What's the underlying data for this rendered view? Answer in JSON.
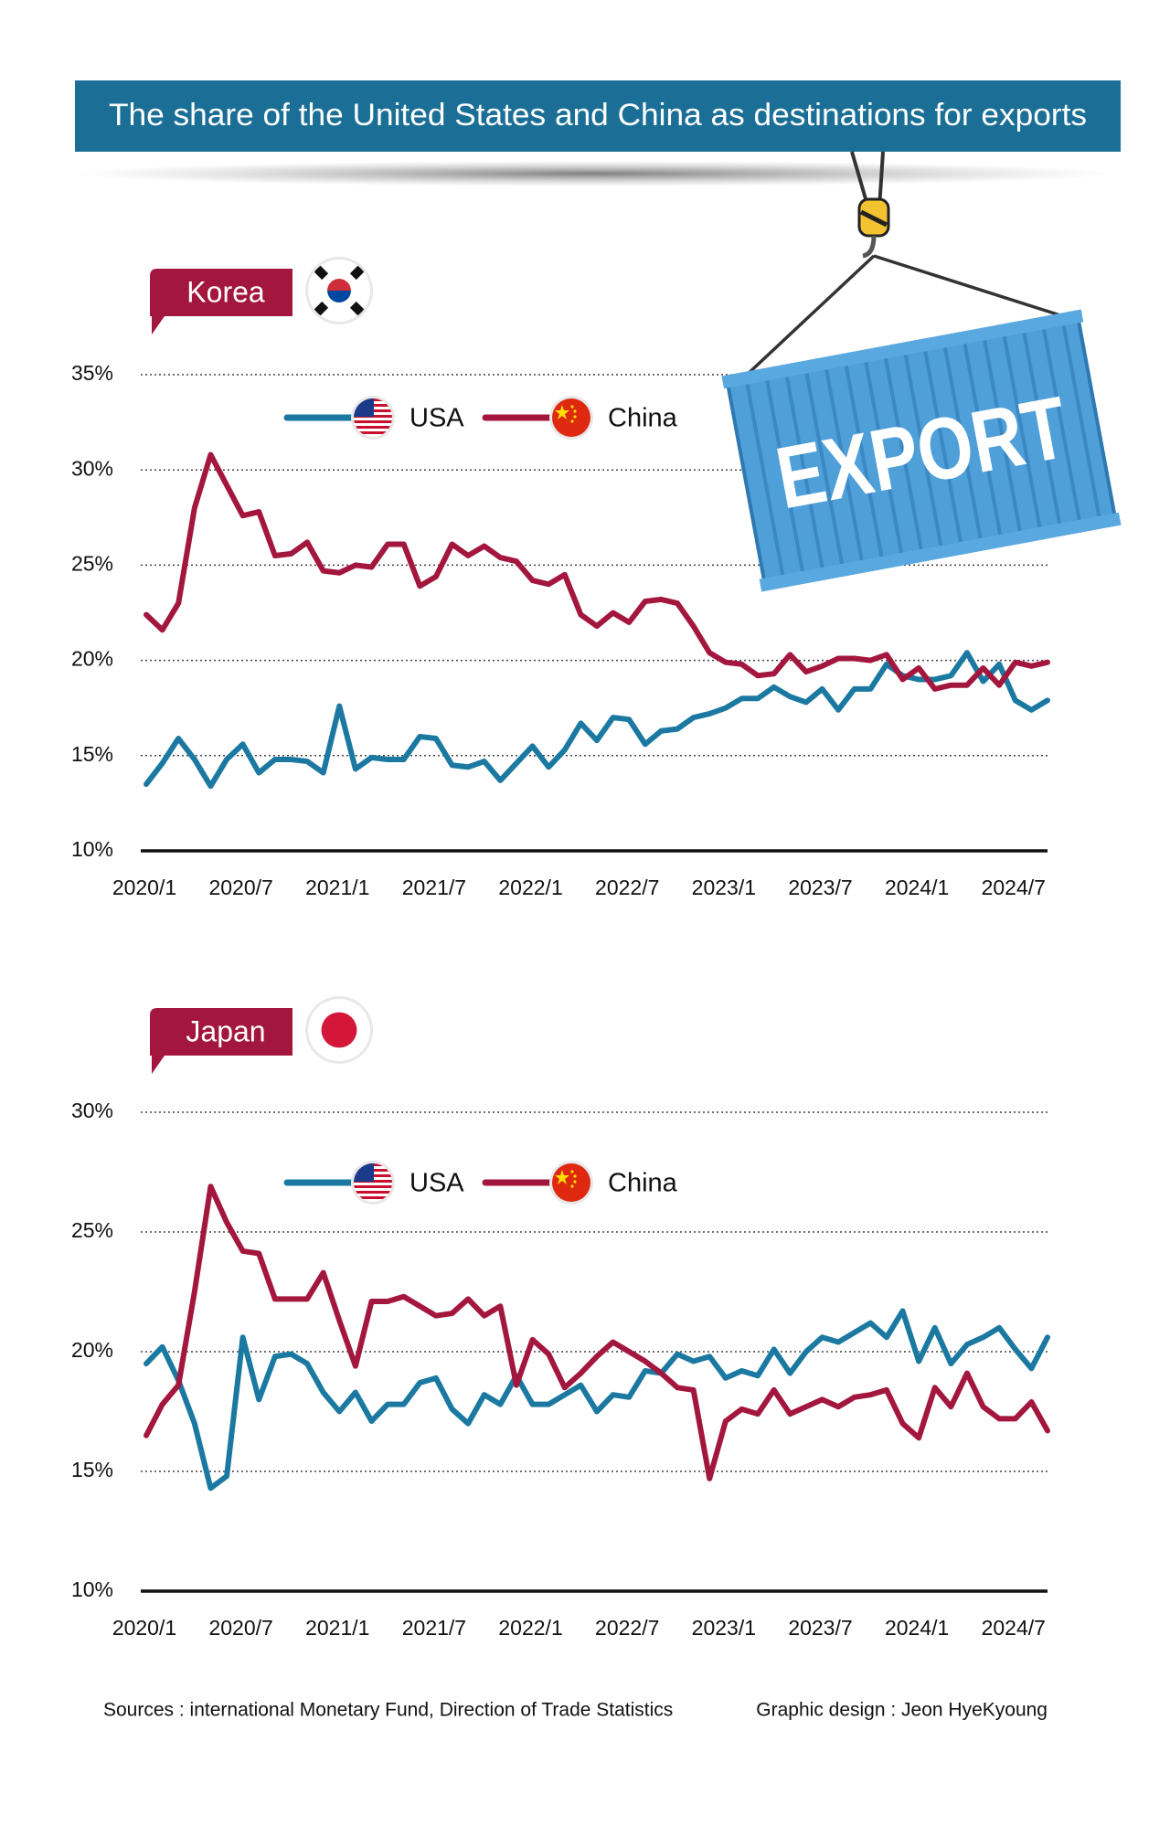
{
  "title": "The share of the United States and China as destinations for exports",
  "illustration_label": "EXPORT",
  "sources": "Sources : international Monetary Fund, Direction of Trade Statistics",
  "credit": "Graphic design : Jeon HyeKyoung",
  "chart_data": [
    {
      "type": "line",
      "title": "Korea",
      "categories": [
        "2020/1",
        null,
        null,
        null,
        null,
        null,
        "2020/7",
        null,
        null,
        null,
        null,
        null,
        "2021/1",
        null,
        null,
        null,
        null,
        null,
        "2021/7",
        null,
        null,
        null,
        null,
        null,
        "2022/1",
        null,
        null,
        null,
        null,
        null,
        "2022/7",
        null,
        null,
        null,
        null,
        null,
        "2023/1",
        null,
        null,
        null,
        null,
        null,
        "2023/7",
        null,
        null,
        null,
        null,
        null,
        "2024/1",
        null,
        null,
        null,
        null,
        null,
        "2024/7",
        null,
        null
      ],
      "ylim": [
        10,
        35
      ],
      "yticks": [
        {
          "value": 10,
          "label": "10%"
        },
        {
          "value": 15,
          "label": "15%"
        },
        {
          "value": 20,
          "label": "20%"
        },
        {
          "value": 25,
          "label": "25%"
        },
        {
          "value": 30,
          "label": "30%"
        },
        {
          "value": 35,
          "label": "35%"
        }
      ],
      "grid": true,
      "series": [
        {
          "name": "USA",
          "color": "#1b79a1",
          "values": [
            13.5,
            14.6,
            15.9,
            14.8,
            13.4,
            14.8,
            15.6,
            14.1,
            14.8,
            14.8,
            14.7,
            14.1,
            17.6,
            14.3,
            14.9,
            14.8,
            14.8,
            16.0,
            15.9,
            14.5,
            14.4,
            14.7,
            13.7,
            14.6,
            15.5,
            14.4,
            15.3,
            16.7,
            15.8,
            17.0,
            16.9,
            15.6,
            16.3,
            16.4,
            17.0,
            17.2,
            17.5,
            18.0,
            18.0,
            18.6,
            18.1,
            17.8,
            18.5,
            17.4,
            18.5,
            18.5,
            19.8,
            19.2,
            19.0,
            19.0,
            19.2,
            20.4,
            18.9,
            19.8,
            17.9,
            17.4,
            17.9
          ]
        },
        {
          "name": "China",
          "color": "#a3163d",
          "values": [
            22.4,
            21.6,
            23.0,
            28.0,
            30.8,
            29.2,
            27.6,
            27.8,
            25.5,
            25.6,
            26.2,
            24.7,
            24.6,
            25.0,
            24.9,
            26.1,
            26.1,
            23.9,
            24.4,
            26.1,
            25.5,
            26.0,
            25.4,
            25.2,
            24.2,
            24.0,
            24.5,
            22.4,
            21.8,
            22.5,
            22.0,
            23.1,
            23.2,
            23.0,
            21.8,
            20.4,
            19.9,
            19.8,
            19.2,
            19.3,
            20.3,
            19.4,
            19.7,
            20.1,
            20.1,
            20.0,
            20.3,
            19.0,
            19.6,
            18.5,
            18.7,
            18.7,
            19.6,
            18.7,
            19.9,
            19.7,
            19.9
          ]
        }
      ]
    },
    {
      "type": "line",
      "title": "Japan",
      "categories": [
        "2020/1",
        null,
        null,
        null,
        null,
        null,
        "2020/7",
        null,
        null,
        null,
        null,
        null,
        "2021/1",
        null,
        null,
        null,
        null,
        null,
        "2021/7",
        null,
        null,
        null,
        null,
        null,
        "2022/1",
        null,
        null,
        null,
        null,
        null,
        "2022/7",
        null,
        null,
        null,
        null,
        null,
        "2023/1",
        null,
        null,
        null,
        null,
        null,
        "2023/7",
        null,
        null,
        null,
        null,
        null,
        "2024/1",
        null,
        null,
        null,
        null,
        null,
        "2024/7",
        null,
        null
      ],
      "ylim": [
        10,
        30
      ],
      "yticks": [
        {
          "value": 10,
          "label": "10%"
        },
        {
          "value": 15,
          "label": "15%"
        },
        {
          "value": 20,
          "label": "20%"
        },
        {
          "value": 25,
          "label": "25%"
        },
        {
          "value": 30,
          "label": "30%"
        }
      ],
      "grid": true,
      "series": [
        {
          "name": "USA",
          "color": "#1b79a1",
          "values": [
            19.5,
            20.2,
            18.8,
            17.0,
            14.3,
            14.8,
            20.6,
            18.0,
            19.8,
            19.9,
            19.5,
            18.3,
            17.5,
            18.3,
            17.1,
            17.8,
            17.8,
            18.7,
            18.9,
            17.6,
            17.0,
            18.2,
            17.8,
            19.0,
            17.8,
            17.8,
            18.2,
            18.6,
            17.5,
            18.2,
            18.1,
            19.2,
            19.1,
            19.9,
            19.6,
            19.8,
            18.9,
            19.2,
            19.0,
            20.1,
            19.1,
            20.0,
            20.6,
            20.4,
            20.8,
            21.2,
            20.6,
            21.7,
            19.6,
            21.0,
            19.5,
            20.3,
            20.6,
            21.0,
            20.1,
            19.3,
            20.6
          ]
        },
        {
          "name": "China",
          "color": "#a3163d",
          "values": [
            16.5,
            17.8,
            18.6,
            22.5,
            26.9,
            25.4,
            24.2,
            24.1,
            22.2,
            22.2,
            22.2,
            23.3,
            21.3,
            19.4,
            22.1,
            22.1,
            22.3,
            21.9,
            21.5,
            21.6,
            22.2,
            21.5,
            21.9,
            18.6,
            20.5,
            19.9,
            18.5,
            19.1,
            19.8,
            20.4,
            20.0,
            19.6,
            19.1,
            18.5,
            18.4,
            14.7,
            17.1,
            17.6,
            17.4,
            18.4,
            17.4,
            17.7,
            18.0,
            17.7,
            18.1,
            18.2,
            18.4,
            17.0,
            16.4,
            18.5,
            17.7,
            19.1,
            17.7,
            17.2,
            17.2,
            17.9,
            16.7
          ]
        }
      ]
    }
  ]
}
